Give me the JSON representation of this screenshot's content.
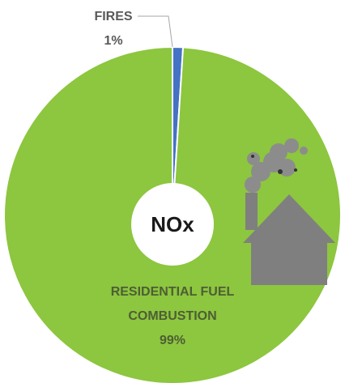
{
  "chart_data": {
    "type": "pie",
    "categories": [
      "FIRES",
      "RESIDENTIAL FUEL COMBUSTION"
    ],
    "values": [
      1,
      99
    ],
    "value_labels": [
      "1%",
      "99%"
    ],
    "colors": [
      "#4472c4",
      "#8dc63f"
    ],
    "center_label": "NOx"
  }
}
